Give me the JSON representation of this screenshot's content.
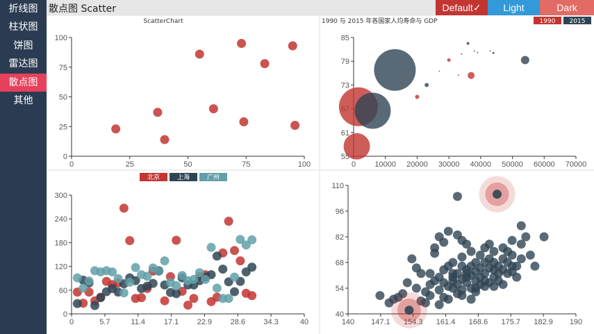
{
  "sidebar": {
    "items": [
      {
        "label": "折线图",
        "active": false
      },
      {
        "label": "柱状图",
        "active": false
      },
      {
        "label": "饼图",
        "active": false
      },
      {
        "label": "雷达图",
        "active": false
      },
      {
        "label": "散点图",
        "active": true
      },
      {
        "label": "其他",
        "active": false
      }
    ],
    "bg_color": "#2b3c52",
    "active_color": "#e6405c"
  },
  "header": {
    "title": "散点图 Scatter",
    "themes": [
      {
        "label": "Default",
        "check": "✓",
        "color": "#c23531"
      },
      {
        "label": "Light",
        "check": "",
        "color": "#3399d9"
      },
      {
        "label": "Dark",
        "check": "",
        "color": "#e26b65"
      }
    ]
  },
  "chart_data": [
    {
      "type": "scatter",
      "title": "ScatterChart",
      "xlim": [
        0,
        100
      ],
      "ylim": [
        0,
        100
      ],
      "xticks": [
        "0",
        "25",
        "50",
        "75",
        "100"
      ],
      "yticks": [
        "0",
        "25",
        "50",
        "75",
        "100"
      ],
      "color": "#c23531",
      "points": [
        [
          19,
          23
        ],
        [
          37,
          37
        ],
        [
          40,
          14
        ],
        [
          55,
          86
        ],
        [
          61,
          40
        ],
        [
          73,
          95
        ],
        [
          74,
          29
        ],
        [
          83,
          78
        ],
        [
          95,
          93
        ],
        [
          96,
          26
        ]
      ]
    },
    {
      "type": "scatter",
      "title": "1990 与 2015 年各国家人均寿命与 GDP",
      "xlim": [
        0,
        70000
      ],
      "ylim": [
        55,
        85
      ],
      "xticks": [
        "0",
        "10000",
        "20000",
        "30000",
        "40000",
        "50000",
        "60000",
        "70000"
      ],
      "yticks": [
        "55",
        "61",
        "67",
        "73",
        "79",
        "85"
      ],
      "legend": [
        "1990",
        "2015"
      ],
      "series": [
        {
          "name": "1990",
          "color": "#c23531",
          "points": [
            [
              1000,
              57.5,
              19
            ],
            [
              1500,
              67.5,
              28
            ],
            [
              20000,
              70,
              3
            ],
            [
              30000,
              79.3,
              2.5
            ],
            [
              37000,
              75.4,
              5
            ],
            [
              27000,
              76.5,
              1
            ],
            [
              33000,
              75.5,
              1
            ]
          ]
        },
        {
          "name": "2015",
          "color": "#2f4554",
          "points": [
            [
              13000,
              76.8,
              30
            ],
            [
              6000,
              66.5,
              26
            ],
            [
              23000,
              73,
              3
            ],
            [
              36000,
              83.5,
              2
            ],
            [
              54000,
              79.3,
              6
            ],
            [
              38000,
              81.6,
              1
            ],
            [
              39000,
              81.2,
              1
            ],
            [
              44000,
              81.1,
              1.5
            ],
            [
              43000,
              81.6,
              1
            ],
            [
              34000,
              80.8,
              1
            ]
          ]
        }
      ]
    },
    {
      "type": "scatter",
      "title": "",
      "xlim": [
        0,
        40
      ],
      "ylim": [
        0,
        300
      ],
      "xticks": [
        "0",
        "5.7",
        "11.4",
        "17.1",
        "22.9",
        "28.6",
        "34.3",
        "40"
      ],
      "yticks": [
        "0",
        "60",
        "120",
        "180",
        "240",
        "300"
      ],
      "legend": [
        "北京",
        "上海",
        "广州"
      ],
      "series": [
        {
          "name": "北京",
          "color": "#c23531",
          "points": [
            [
              1,
              55
            ],
            [
              2,
              27
            ],
            [
              3,
              55
            ],
            [
              4,
              33
            ],
            [
              5,
              42
            ],
            [
              6,
              82
            ],
            [
              7,
              74
            ],
            [
              8,
              78
            ],
            [
              9,
              267
            ],
            [
              10,
              185
            ],
            [
              11,
              39
            ],
            [
              12,
              41
            ],
            [
              13,
              64
            ],
            [
              14,
              108
            ],
            [
              15,
              108
            ],
            [
              16,
              33
            ],
            [
              17,
              94
            ],
            [
              18,
              186
            ],
            [
              19,
              57
            ],
            [
              20,
              22
            ],
            [
              21,
              39
            ],
            [
              22,
              94
            ],
            [
              23,
              99
            ],
            [
              24,
              31
            ],
            [
              25,
              42
            ],
            [
              26,
              154
            ],
            [
              27,
              234
            ],
            [
              28,
              160
            ],
            [
              29,
              134
            ],
            [
              30,
              52
            ],
            [
              31,
              46
            ]
          ]
        },
        {
          "name": "上海",
          "color": "#2f4554",
          "points": [
            [
              1,
              26
            ],
            [
              2,
              85
            ],
            [
              3,
              78
            ],
            [
              4,
              21
            ],
            [
              5,
              41
            ],
            [
              6,
              56
            ],
            [
              7,
              64
            ],
            [
              8,
              55
            ],
            [
              9,
              76
            ],
            [
              10,
              91
            ],
            [
              11,
              84
            ],
            [
              12,
              64
            ],
            [
              13,
              70
            ],
            [
              14,
              77
            ],
            [
              15,
              109
            ],
            [
              16,
              73
            ],
            [
              17,
              54
            ],
            [
              18,
              51
            ],
            [
              19,
              91
            ],
            [
              20,
              73
            ],
            [
              21,
              73
            ],
            [
              22,
              84
            ],
            [
              23,
              93
            ],
            [
              24,
              99
            ],
            [
              25,
              146
            ],
            [
              26,
              113
            ],
            [
              27,
              81
            ],
            [
              28,
              56
            ],
            [
              29,
              82
            ],
            [
              30,
              106
            ],
            [
              31,
              118
            ]
          ]
        },
        {
          "name": "广州",
          "color": "#61a0a8",
          "points": [
            [
              1,
              91
            ],
            [
              2,
              65
            ],
            [
              3,
              83
            ],
            [
              4,
              109
            ],
            [
              5,
              106
            ],
            [
              6,
              109
            ],
            [
              7,
              106
            ],
            [
              8,
              89
            ],
            [
              9,
              53
            ],
            [
              10,
              80
            ],
            [
              11,
              117
            ],
            [
              12,
              99
            ],
            [
              13,
              95
            ],
            [
              14,
              116
            ],
            [
              15,
              108
            ],
            [
              16,
              134
            ],
            [
              17,
              79
            ],
            [
              18,
              71
            ],
            [
              19,
              97
            ],
            [
              20,
              84
            ],
            [
              21,
              87
            ],
            [
              22,
              104
            ],
            [
              23,
              87
            ],
            [
              24,
              168
            ],
            [
              25,
              65
            ],
            [
              26,
              39
            ],
            [
              27,
              39
            ],
            [
              28,
              93
            ],
            [
              29,
              188
            ],
            [
              30,
              174
            ],
            [
              31,
              187
            ]
          ]
        }
      ]
    },
    {
      "type": "scatter",
      "title": "",
      "xlim": [
        140,
        190
      ],
      "ylim": [
        40,
        110
      ],
      "xticks": [
        "140",
        "147.1",
        "154.3",
        "161.4",
        "168.6",
        "175.7",
        "182.9",
        "190"
      ],
      "yticks": [
        "40",
        "54",
        "68",
        "82",
        "96",
        "110"
      ],
      "color": "#2f4554",
      "highlight_color": "#c23531",
      "highlights": [
        [
          172.7,
          105.2
        ],
        [
          153.4,
          42
        ]
      ],
      "points": [
        [
          147,
          50
        ],
        [
          149,
          46
        ],
        [
          150,
          48
        ],
        [
          151,
          49
        ],
        [
          152,
          51
        ],
        [
          153,
          57
        ],
        [
          154,
          70
        ],
        [
          155,
          54
        ],
        [
          155,
          65
        ],
        [
          156,
          47
        ],
        [
          157,
          46
        ],
        [
          157,
          52
        ],
        [
          158,
          56
        ],
        [
          158,
          50
        ],
        [
          159,
          76
        ],
        [
          159,
          58
        ],
        [
          160,
          53
        ],
        [
          160,
          45
        ],
        [
          160,
          60
        ],
        [
          161,
          49
        ],
        [
          161,
          57
        ],
        [
          161,
          64
        ],
        [
          162,
          55
        ],
        [
          162,
          66
        ],
        [
          162,
          48
        ],
        [
          163,
          54
        ],
        [
          163,
          60
        ],
        [
          163,
          58
        ],
        [
          163,
          68
        ],
        [
          164,
          51
        ],
        [
          164,
          62
        ],
        [
          164,
          56
        ],
        [
          165,
          50
        ],
        [
          165,
          59
        ],
        [
          165,
          71
        ],
        [
          165,
          53
        ],
        [
          166,
          57
        ],
        [
          166,
          64
        ],
        [
          166,
          60
        ],
        [
          167,
          54
        ],
        [
          167,
          66
        ],
        [
          167,
          61
        ],
        [
          167,
          48
        ],
        [
          168,
          58
        ],
        [
          168,
          68
        ],
        [
          168,
          52
        ],
        [
          168,
          63
        ],
        [
          169,
          60
        ],
        [
          169,
          56
        ],
        [
          169,
          72
        ],
        [
          169,
          65
        ],
        [
          170,
          55
        ],
        [
          170,
          62
        ],
        [
          170,
          68
        ],
        [
          170,
          58
        ],
        [
          171,
          57
        ],
        [
          171,
          65
        ],
        [
          171,
          70
        ],
        [
          172,
          60
        ],
        [
          172,
          64
        ],
        [
          172,
          55
        ],
        [
          172,
          74
        ],
        [
          173,
          62
        ],
        [
          173,
          66
        ],
        [
          173,
          58
        ],
        [
          174,
          70
        ],
        [
          174,
          64
        ],
        [
          174,
          56
        ],
        [
          175,
          68
        ],
        [
          175,
          62
        ],
        [
          175,
          74
        ],
        [
          176,
          63
        ],
        [
          176,
          72
        ],
        [
          177,
          60
        ],
        [
          177,
          66
        ],
        [
          178,
          70
        ],
        [
          178,
          78
        ],
        [
          179,
          82
        ],
        [
          180,
          72
        ],
        [
          181,
          66
        ],
        [
          183,
          82
        ],
        [
          159,
          73
        ],
        [
          160,
          82
        ],
        [
          161,
          79
        ],
        [
          162,
          85
        ],
        [
          164,
          83
        ],
        [
          165,
          80
        ],
        [
          166,
          78
        ],
        [
          167,
          74
        ],
        [
          170,
          76
        ],
        [
          171,
          78
        ],
        [
          176,
          80
        ],
        [
          178,
          88
        ],
        [
          164,
          104
        ],
        [
          156,
          62
        ],
        [
          158,
          62
        ],
        [
          163,
          62
        ],
        [
          166,
          62
        ],
        [
          168,
          54
        ],
        [
          165,
          66
        ],
        [
          172,
          68
        ],
        [
          174,
          76
        ],
        [
          176,
          66
        ]
      ]
    }
  ]
}
